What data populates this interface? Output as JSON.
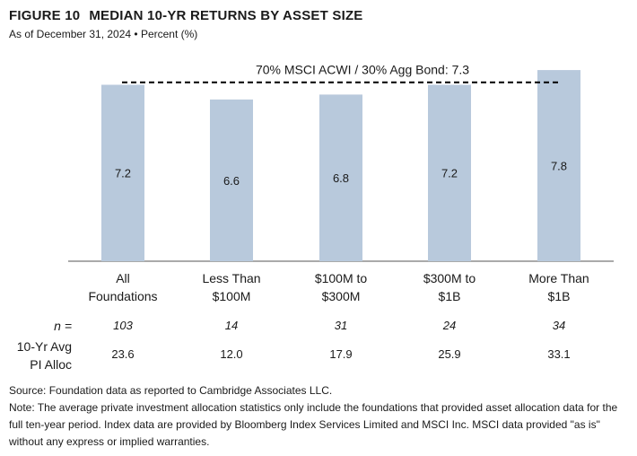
{
  "figure_label": "FIGURE 10",
  "title": "MEDIAN 10-YR RETURNS BY ASSET SIZE",
  "subtitle": "As of December 31, 2024 • Percent (%)",
  "chart_data": {
    "type": "bar",
    "categories": [
      [
        "All",
        "Foundations"
      ],
      [
        "Less Than",
        "$100M"
      ],
      [
        "$100M to",
        "$300M"
      ],
      [
        "$300M to",
        "$1B"
      ],
      [
        "More Than",
        "$1B"
      ]
    ],
    "values": [
      7.2,
      6.6,
      6.8,
      7.2,
      7.8
    ],
    "value_labels": [
      "7.2",
      "6.6",
      "6.8",
      "7.2",
      "7.8"
    ],
    "ylim": [
      0,
      8
    ],
    "bar_color": "#b8c9dc",
    "benchmark": {
      "label": "70% MSCI ACWI / 30% Agg Bond: 7.3",
      "value": 7.3,
      "style": "dashed",
      "color": "#000000"
    },
    "grid": false
  },
  "table": {
    "n_label": "n =",
    "n_values": [
      "103",
      "14",
      "31",
      "24",
      "34"
    ],
    "pi_label": [
      "10-Yr Avg",
      "PI Alloc"
    ],
    "pi_values": [
      "23.6",
      "12.0",
      "17.9",
      "25.9",
      "33.1"
    ]
  },
  "footer": {
    "source": "Source: Foundation data as reported to Cambridge Associates LLC.",
    "note": "Note: The average private investment allocation statistics only include the foundations that provided asset allocation data for the full ten-year period.  Index data are provided by Bloomberg Index Services Limited and MSCI Inc. MSCI data provided \"as is\" without any express or implied warranties."
  }
}
